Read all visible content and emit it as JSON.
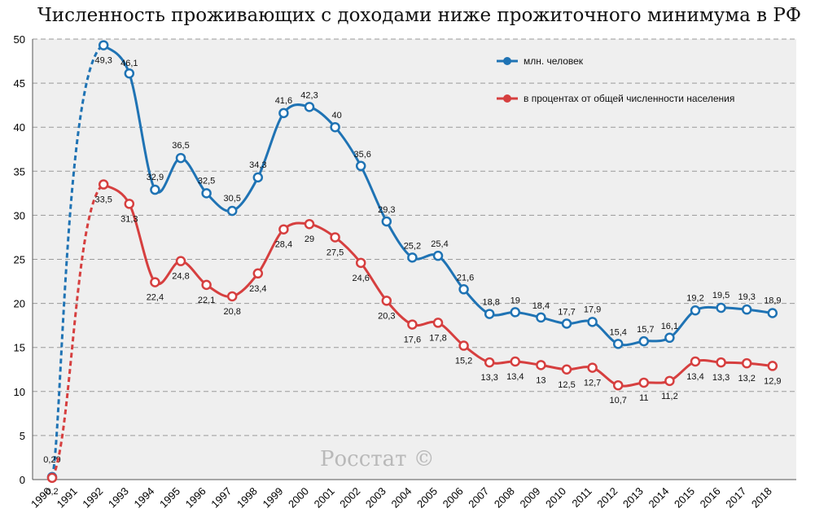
{
  "title": "Численность проживающих с доходами ниже прожиточного минимума в РФ",
  "watermark": "Росстат ©",
  "colors": {
    "series1": "#1f73b4",
    "series2": "#d63f3f",
    "plot_bg": "#efefef",
    "grid": "#9a9a9a"
  },
  "chart_data": {
    "type": "line",
    "title": "Численность проживающих с доходами ниже прожиточного минимума в РФ",
    "xlabel": "",
    "ylabel": "",
    "ylim": [
      0,
      50
    ],
    "yticks": [
      0,
      5,
      10,
      15,
      20,
      25,
      30,
      35,
      40,
      45,
      50
    ],
    "grid": true,
    "legend_position": "top-right",
    "categories": [
      "1990",
      "1991",
      "1992",
      "1993",
      "1994",
      "1995",
      "1996",
      "1997",
      "1998",
      "1999",
      "2000",
      "2001",
      "2002",
      "2003",
      "2004",
      "2005",
      "2006",
      "2007",
      "2008",
      "2009",
      "2010",
      "2011",
      "2012",
      "2013",
      "2014",
      "2015",
      "2016",
      "2017",
      "2018"
    ],
    "series": [
      {
        "name": "млн. человек",
        "color": "#1f73b4",
        "values": [
          0.29,
          null,
          49.3,
          46.1,
          32.9,
          36.5,
          32.5,
          30.5,
          34.3,
          41.6,
          42.3,
          40,
          35.6,
          29.3,
          25.2,
          25.4,
          21.6,
          18.8,
          19,
          18.4,
          17.7,
          17.9,
          15.4,
          15.7,
          16.1,
          19.2,
          19.5,
          19.3,
          18.9
        ],
        "labels": [
          "0,29",
          "",
          "49,3",
          "46,1",
          "32,9",
          "36,5",
          "32,5",
          "30,5",
          "34,3",
          "41,6",
          "42,3",
          "40",
          "35,6",
          "29,3",
          "25,2",
          "25,4",
          "21,6",
          "18,8",
          "19",
          "18,4",
          "17,7",
          "17,9",
          "15,4",
          "15,7",
          "16,1",
          "19,2",
          "19,5",
          "19,3",
          "18,9"
        ]
      },
      {
        "name": "в процентах от общей численности населения",
        "color": "#d63f3f",
        "values": [
          0.2,
          null,
          33.5,
          31.3,
          22.4,
          24.8,
          22.1,
          20.8,
          23.4,
          28.4,
          29,
          27.5,
          24.6,
          20.3,
          17.6,
          17.8,
          15.2,
          13.3,
          13.4,
          13,
          12.5,
          12.7,
          10.7,
          11,
          11.2,
          13.4,
          13.3,
          13.2,
          12.9
        ],
        "labels": [
          "0,2",
          "",
          "33,5",
          "31,3",
          "22,4",
          "24,8",
          "22,1",
          "20,8",
          "23,4",
          "28,4",
          "29",
          "27,5",
          "24,6",
          "20,3",
          "17,6",
          "17,8",
          "15,2",
          "13,3",
          "13,4",
          "13",
          "12,5",
          "12,7",
          "10,7",
          "11",
          "11,2",
          "13,4",
          "13,3",
          "13,2",
          "12,9"
        ]
      }
    ]
  }
}
